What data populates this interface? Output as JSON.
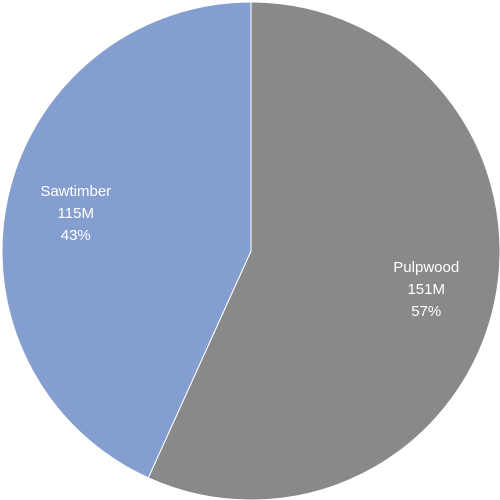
{
  "chart_data": {
    "type": "pie",
    "title": "",
    "slices": [
      {
        "label": "Pulpwood",
        "value_text": "151M",
        "percent_text": "57%",
        "value": 151,
        "percent": 57,
        "color": "#898989"
      },
      {
        "label": "Sawtimber",
        "value_text": "115M",
        "percent_text": "43%",
        "value": 115,
        "percent": 43,
        "color": "#859ed0"
      }
    ]
  }
}
